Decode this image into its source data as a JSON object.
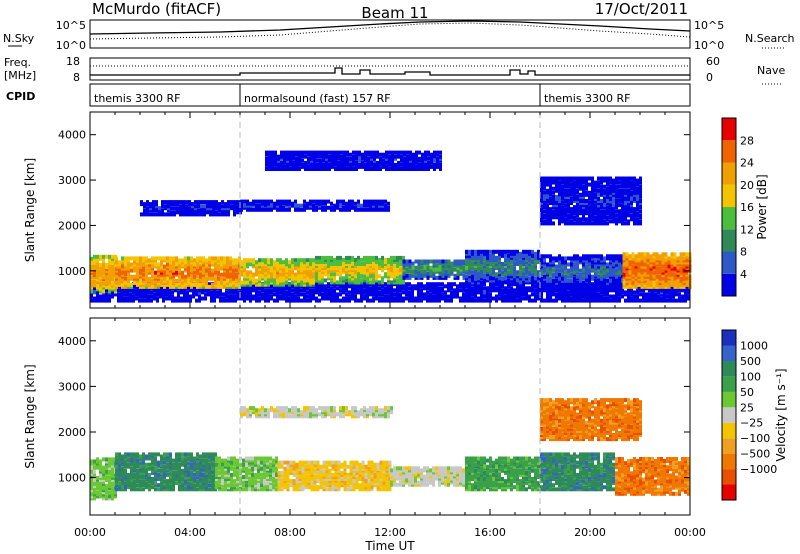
{
  "header": {
    "station": "McMurdo (fitACF)",
    "beam": "Beam 11",
    "date": "17/Oct/2011"
  },
  "panels": {
    "nsky": {
      "left_label": "N.Sky",
      "left_ticks": [
        "10^5",
        "10^0"
      ],
      "right_ticks": [
        "10^5",
        "10^0"
      ],
      "right_label": "N.Search"
    },
    "freq": {
      "left_label_1": "Freq.",
      "left_label_2": "[MHz]",
      "left_ticks": [
        "18",
        "8"
      ],
      "right_ticks": [
        "60",
        "0"
      ],
      "right_label": "Nave"
    },
    "cpid": {
      "label": "CPID",
      "segments": [
        {
          "label": "themis 3300 RF",
          "start_hour": 0
        },
        {
          "label": "normalsound (fast) 157 RF",
          "start_hour": 6
        },
        {
          "label": "themis 3300 RF",
          "start_hour": 18
        }
      ]
    }
  },
  "chart_data": [
    {
      "type": "heatmap",
      "title": "Power",
      "xlabel": "Time UT",
      "ylabel": "Slant Range [km]",
      "x_range_hours": [
        0,
        24
      ],
      "x_ticks": [
        "00:00",
        "04:00",
        "08:00",
        "12:00",
        "16:00",
        "20:00",
        "00:00"
      ],
      "ylim_km": [
        180,
        4500
      ],
      "y_ticks": [
        1000,
        2000,
        3000,
        4000
      ],
      "colorbar": {
        "label": "Power [dB]",
        "ticks": [
          4,
          8,
          12,
          16,
          20,
          24,
          28
        ],
        "range": [
          0,
          32
        ],
        "colors": [
          "#0000e6",
          "#2c58c8",
          "#2e8b57",
          "#4cbd3c",
          "#f5c400",
          "#f0a000",
          "#f06400",
          "#e60000"
        ]
      },
      "bands": [
        {
          "hours": [
            0,
            24
          ],
          "km": [
            300,
            700
          ],
          "value": 2
        },
        {
          "hours": [
            0,
            1
          ],
          "km": [
            500,
            1300
          ],
          "value": 24
        },
        {
          "hours": [
            1,
            6
          ],
          "km": [
            600,
            1250
          ],
          "value": 26
        },
        {
          "hours": [
            6,
            9
          ],
          "km": [
            650,
            1200
          ],
          "value": 22
        },
        {
          "hours": [
            9,
            12.5
          ],
          "km": [
            700,
            1250
          ],
          "value": 20
        },
        {
          "hours": [
            12.5,
            15
          ],
          "km": [
            800,
            1200
          ],
          "value": 12
        },
        {
          "hours": [
            15,
            18
          ],
          "km": [
            700,
            1400
          ],
          "value": 10
        },
        {
          "hours": [
            18,
            21.3
          ],
          "km": [
            600,
            1300
          ],
          "value": 8
        },
        {
          "hours": [
            21.3,
            24
          ],
          "km": [
            600,
            1350
          ],
          "value": 28
        },
        {
          "hours": [
            2,
            6
          ],
          "km": [
            2200,
            2500
          ],
          "value": 4
        },
        {
          "hours": [
            6,
            12
          ],
          "km": [
            2300,
            2500
          ],
          "value": 4
        },
        {
          "hours": [
            7,
            14
          ],
          "km": [
            3200,
            3600
          ],
          "value": 3
        },
        {
          "hours": [
            18,
            22
          ],
          "km": [
            2000,
            3000
          ],
          "value": 4
        }
      ]
    },
    {
      "type": "heatmap",
      "title": "Velocity",
      "xlabel": "Time UT",
      "ylabel": "Slant Range [km]",
      "x_range_hours": [
        0,
        24
      ],
      "x_ticks": [
        "00:00",
        "04:00",
        "08:00",
        "12:00",
        "16:00",
        "20:00",
        "00:00"
      ],
      "ylim_km": [
        180,
        4500
      ],
      "y_ticks": [
        1000,
        2000,
        3000,
        4000
      ],
      "colorbar": {
        "label": "Velocity [m s⁻¹]",
        "ticks": [
          "1000",
          "500",
          "100",
          "50",
          "25",
          "−25",
          "−100",
          "−500",
          "−1000"
        ],
        "colors": [
          "#1a2fbf",
          "#3563c9",
          "#2e8b57",
          "#3aa04a",
          "#6ac832",
          "#c8c8c8",
          "#f5c400",
          "#f0a020",
          "#f07800",
          "#e85000",
          "#e60000"
        ]
      },
      "bands": [
        {
          "hours": [
            0,
            1
          ],
          "km": [
            500,
            1400
          ],
          "value": 4
        },
        {
          "hours": [
            1,
            5
          ],
          "km": [
            700,
            1500
          ],
          "value": 2
        },
        {
          "hours": [
            5,
            7.5
          ],
          "km": [
            700,
            1400
          ],
          "value": 4
        },
        {
          "hours": [
            7.5,
            12
          ],
          "km": [
            700,
            1300
          ],
          "value": 6
        },
        {
          "hours": [
            12,
            15
          ],
          "km": [
            800,
            1200
          ],
          "value": 5
        },
        {
          "hours": [
            15,
            18
          ],
          "km": [
            700,
            1400
          ],
          "value": 3
        },
        {
          "hours": [
            18,
            21
          ],
          "km": [
            700,
            1500
          ],
          "value": 2
        },
        {
          "hours": [
            21,
            24
          ],
          "km": [
            600,
            1400
          ],
          "value": 8
        },
        {
          "hours": [
            6,
            12
          ],
          "km": [
            2300,
            2500
          ],
          "value": 5
        },
        {
          "hours": [
            18,
            22
          ],
          "km": [
            1800,
            2700
          ],
          "value": 8
        }
      ]
    }
  ]
}
